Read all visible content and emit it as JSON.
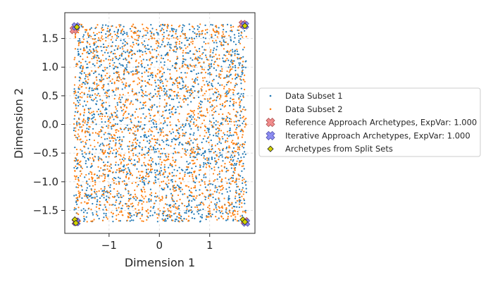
{
  "chart_data": {
    "type": "scatter",
    "title": "",
    "xlabel": "Dimension 1",
    "ylabel": "Dimension 2",
    "xlim": [
      -1.88,
      1.9
    ],
    "ylim": [
      -1.9,
      1.95
    ],
    "xticks": [
      -1,
      0,
      1
    ],
    "xtick_labels": [
      "−1",
      "0",
      "1"
    ],
    "yticks": [
      -1.5,
      -1.0,
      -0.5,
      0.0,
      0.5,
      1.0,
      1.5
    ],
    "ytick_labels": [
      "−1.5",
      "−1.0",
      "−0.5",
      "0.0",
      "0.5",
      "1.0",
      "1.5"
    ],
    "grid": true,
    "legend_position": "outside-right",
    "data_range": {
      "x": [
        -1.7,
        1.73
      ],
      "y": [
        -1.7,
        1.75
      ]
    },
    "series": [
      {
        "name": "Data Subset 1",
        "kind": "points",
        "color": "#1f77b4",
        "count": 1800,
        "distribution": "uniform over data_range"
      },
      {
        "name": "Data Subset 2",
        "kind": "points",
        "color": "#ff7f0e",
        "count": 1800,
        "distribution": "uniform over data_range"
      },
      {
        "name": "Reference Approach Archetypes, ExpVar: 1.000",
        "kind": "archetype",
        "color": "#f08080",
        "edge": "#a33a3a",
        "marker": "x-box",
        "points": [
          [
            -1.7,
            1.65
          ],
          [
            1.66,
            1.75
          ],
          [
            -1.66,
            -1.7
          ],
          [
            1.7,
            -1.69
          ]
        ]
      },
      {
        "name": "Iterative Approach Archetypes, ExpVar: 1.000",
        "kind": "archetype",
        "color": "#8080f0",
        "edge": "#3a3aa3",
        "marker": "x-box",
        "points": [
          [
            -1.66,
            1.71
          ],
          [
            1.7,
            1.73
          ],
          [
            -1.65,
            -1.7
          ],
          [
            1.72,
            -1.71
          ]
        ]
      },
      {
        "name": "Archetypes from Split Sets",
        "kind": "diamond",
        "color": "#d4d400",
        "edge": "#222222",
        "points": [
          [
            -1.64,
            1.7
          ],
          [
            1.7,
            1.72
          ],
          [
            -1.68,
            -1.66
          ],
          [
            1.66,
            -1.66
          ],
          [
            1.7,
            -1.7
          ],
          [
            -1.66,
            -1.72
          ]
        ]
      }
    ]
  }
}
